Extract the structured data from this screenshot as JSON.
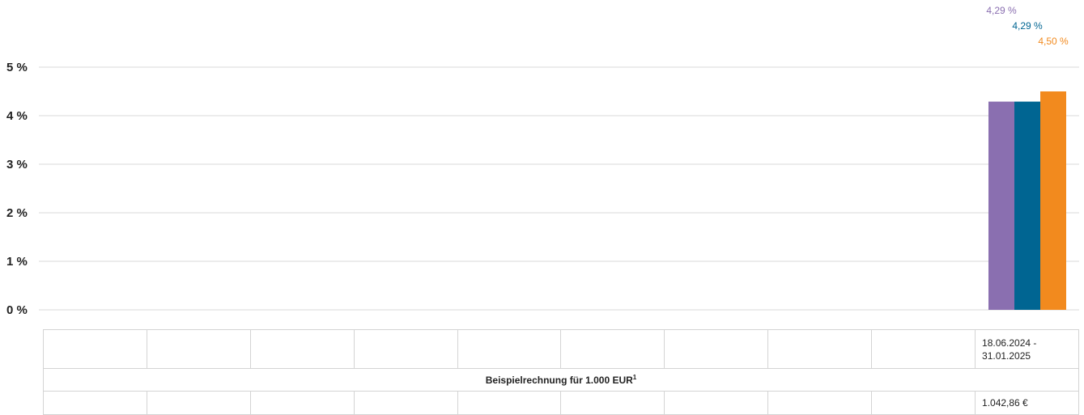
{
  "chart_data": {
    "type": "bar",
    "categories": [
      "18.06.2024 - 31.01.2025"
    ],
    "series": [
      {
        "values": [
          4.29
        ],
        "color": "#8a6fb0",
        "label": "4,29 %"
      },
      {
        "values": [
          4.29
        ],
        "color": "#006592",
        "label": "4,29 %"
      },
      {
        "values": [
          4.5
        ],
        "color": "#f28a1e",
        "label": "4,50 %"
      }
    ],
    "ylim": [
      0,
      5
    ],
    "yticks": [
      {
        "value": 0,
        "label": "0 %"
      },
      {
        "value": 1,
        "label": "1 %"
      },
      {
        "value": 2,
        "label": "2 %"
      },
      {
        "value": 3,
        "label": "3 %"
      },
      {
        "value": 4,
        "label": "4 %"
      },
      {
        "value": 5,
        "label": "5 %"
      }
    ],
    "grid": true,
    "period_slots": 10
  },
  "table": {
    "period_start": "18.06.2024 -",
    "period_end": "31.01.2025",
    "caption": "Beispielrechnung für 1.000 EUR",
    "caption_footnote": "1",
    "value": "1.042,86 €"
  }
}
